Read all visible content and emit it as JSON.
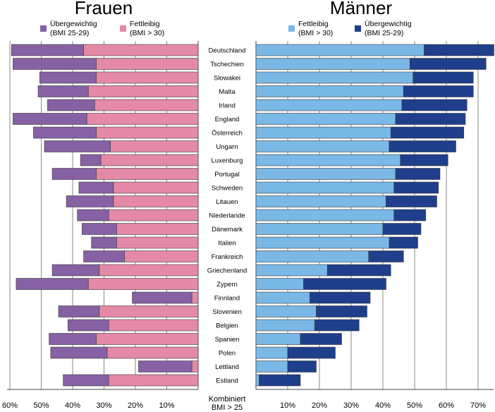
{
  "chart_data": [
    {
      "type": "bar",
      "orientation": "horizontal",
      "stacked": true,
      "direction": "leftward",
      "title": "Frauen",
      "categories": [
        "Deutschland",
        "Tschechien",
        "Slowakei",
        "Malta",
        "Irland",
        "England",
        "Österreich",
        "Ungarn",
        "Luxenburg",
        "Portugal",
        "Schweden",
        "Litauen",
        "Niederlande",
        "Dänemark",
        "Italien",
        "Frankreich",
        "Griechenland",
        "Zypern",
        "Finnland",
        "Slovenien",
        "Belgien",
        "Spanien",
        "Polen",
        "Lettland",
        "Estland"
      ],
      "series": [
        {
          "name": "Fettleibig\n(BMI > 30)",
          "color": "#e589a8",
          "values": [
            36.5,
            32.5,
            32.5,
            35,
            33,
            35.5,
            32.5,
            28,
            31,
            32.5,
            27,
            27,
            28.5,
            26,
            26,
            23.5,
            31.5,
            35,
            2,
            31.5,
            28.5,
            32.5,
            29,
            2,
            28.5
          ]
        },
        {
          "name": "Übergewichtig\n(BMI 25-29)",
          "color": "#8661a3",
          "values": [
            23,
            26.5,
            18,
            16,
            15,
            23.5,
            20,
            21,
            6.5,
            14,
            11,
            15,
            10,
            11,
            8,
            13,
            15,
            23,
            19,
            13,
            13,
            15,
            18,
            17,
            14.5
          ]
        }
      ],
      "xlim": [
        60,
        0
      ],
      "x_ticks": [
        "60%",
        "50%",
        "40%",
        "30%",
        "20%",
        "10%"
      ],
      "legend_position": "top-left"
    },
    {
      "type": "bar",
      "orientation": "horizontal",
      "stacked": true,
      "direction": "rightward",
      "title": "Männer",
      "categories": [
        "Deutschland",
        "Tschechien",
        "Slowakei",
        "Malta",
        "Irland",
        "England",
        "Österreich",
        "Ungarn",
        "Luxenburg",
        "Portugal",
        "Schweden",
        "Litauen",
        "Niederlande",
        "Dänemark",
        "Italien",
        "Frankreich",
        "Griechenland",
        "Zypern",
        "Finnland",
        "Slovenien",
        "Belgien",
        "Spanien",
        "Polen",
        "Lettland",
        "Estland"
      ],
      "series": [
        {
          "name": "Fettleibig\n(BMI > 30)",
          "color": "#7ab8e6",
          "values": [
            53,
            48.5,
            49.5,
            46.5,
            46,
            44,
            42.5,
            42,
            45.5,
            44,
            43.5,
            41,
            43.5,
            40,
            42,
            35.5,
            22.5,
            15,
            17,
            19,
            18.5,
            14,
            10,
            10,
            1
          ]
        },
        {
          "name": "Übergewichtig\n(BMI 25-29)",
          "color": "#1f3f8c",
          "values": [
            22,
            24,
            19,
            22,
            20.5,
            22,
            23,
            21,
            15,
            14,
            14,
            16,
            10,
            12,
            9,
            11,
            20,
            26,
            19,
            16,
            14,
            13,
            15,
            9,
            13
          ]
        }
      ],
      "xlim": [
        0,
        75
      ],
      "x_ticks": [
        "10%",
        "20%",
        "30%",
        "40%",
        "50%",
        "60%",
        "70%"
      ],
      "legend_position": "top-center"
    }
  ],
  "center_axis_label": "Kombiniert\nBMI > 25"
}
